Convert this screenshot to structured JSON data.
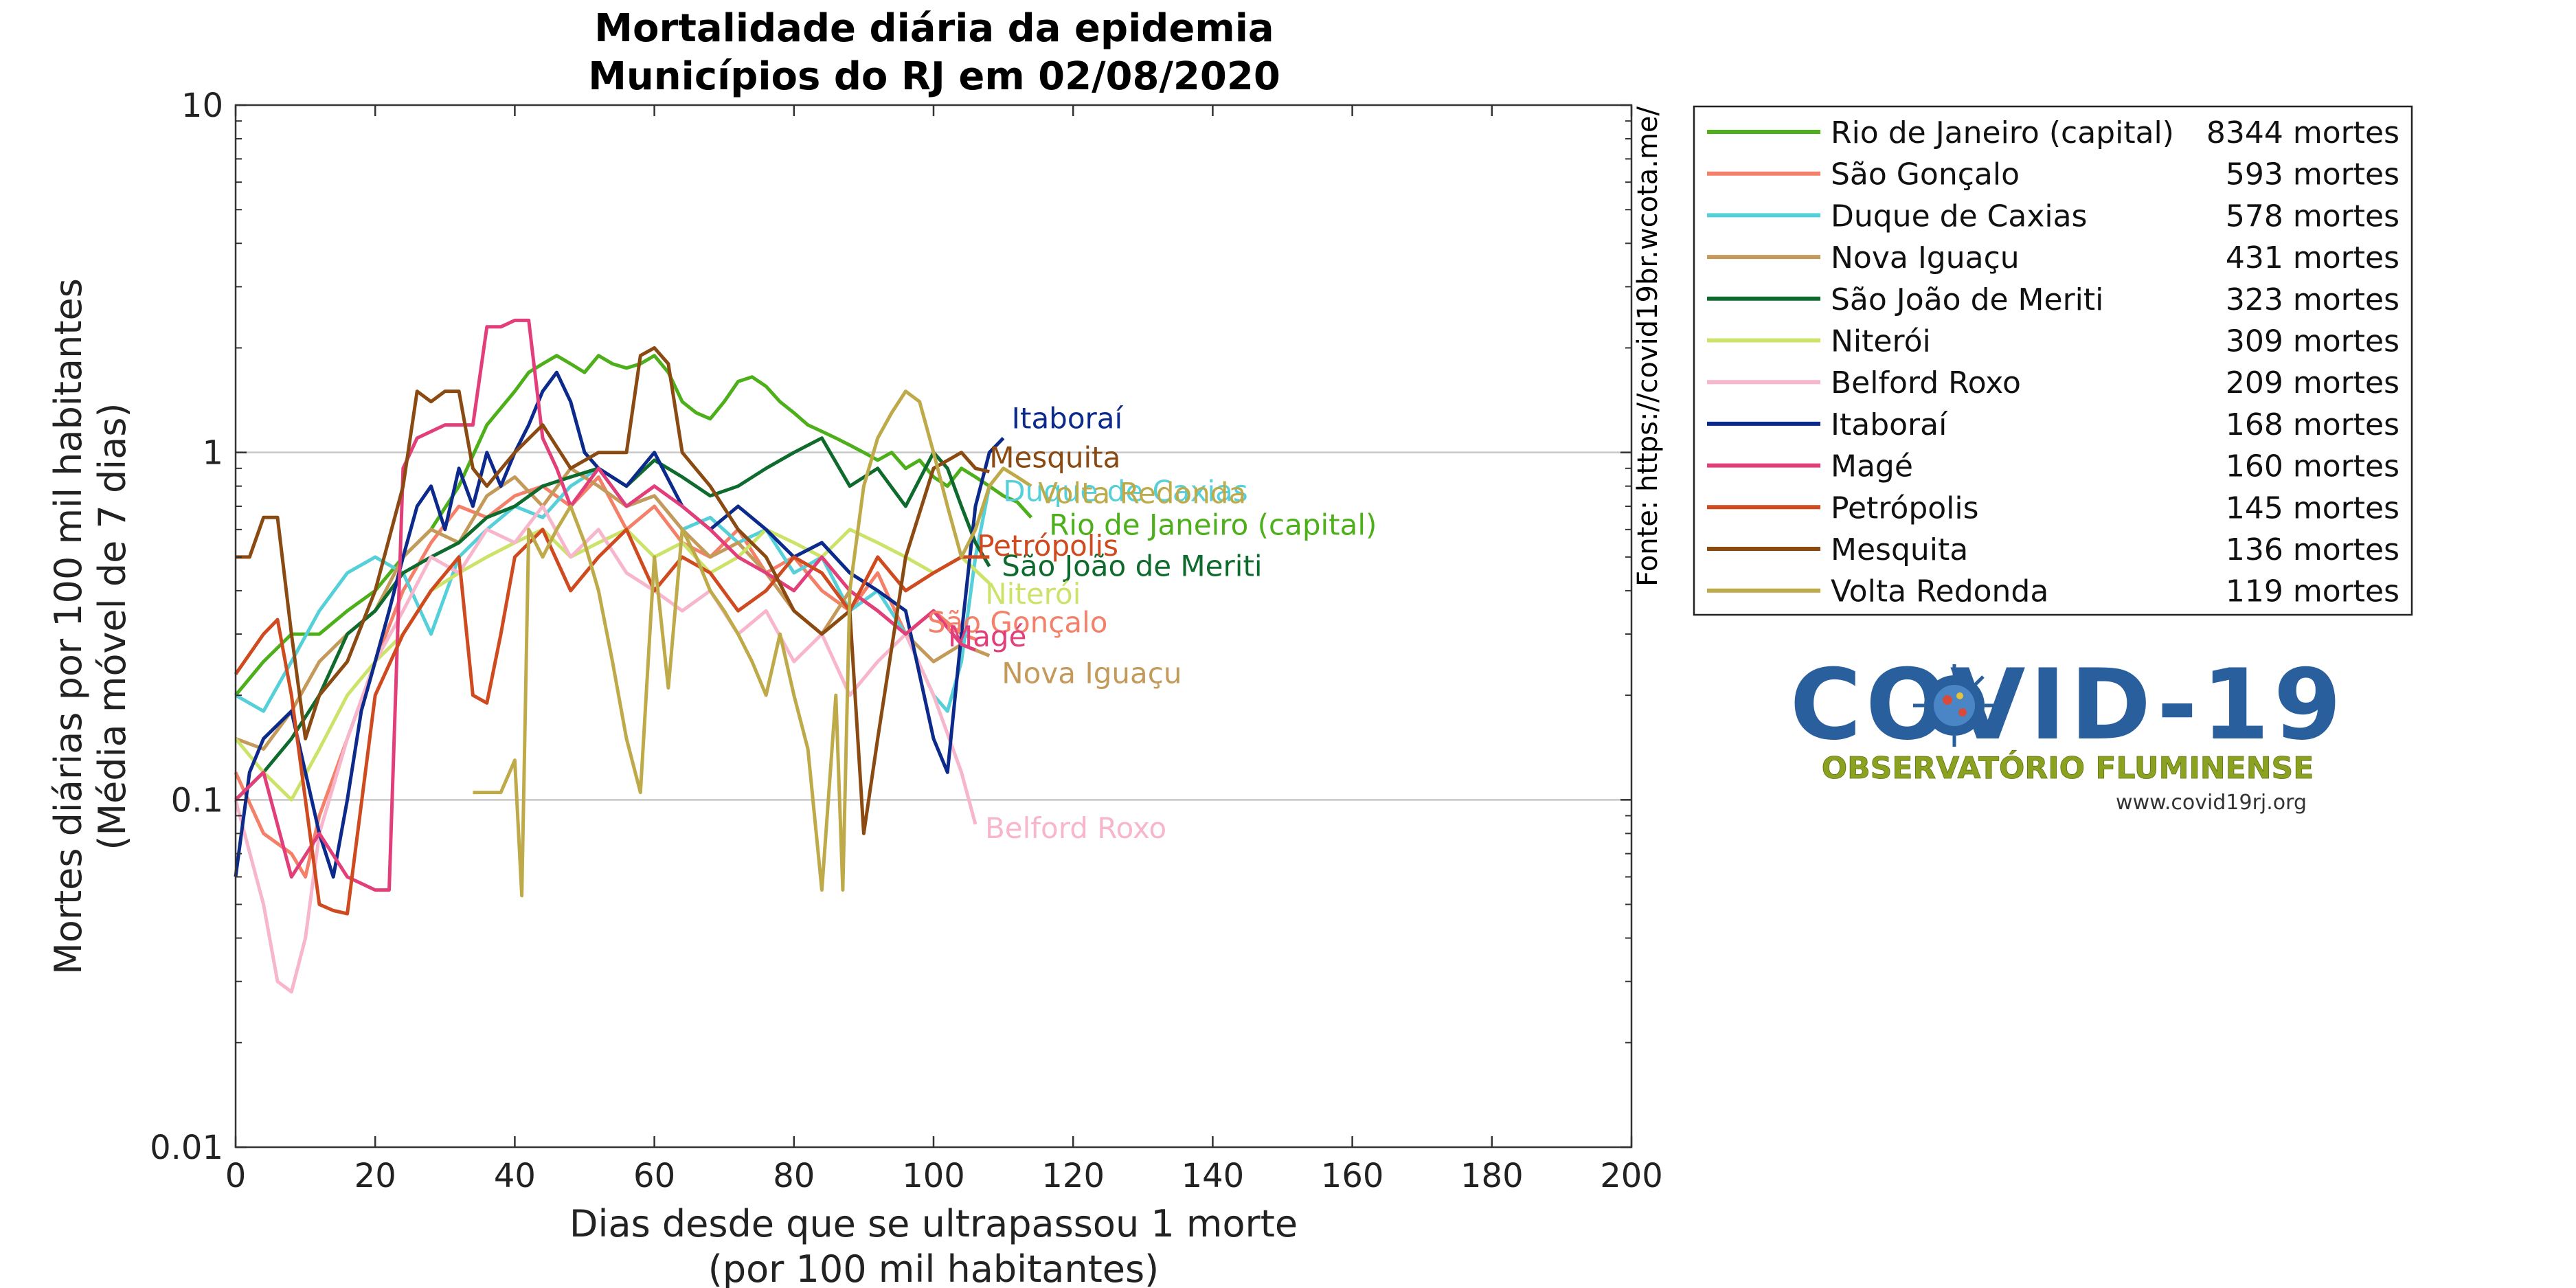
{
  "chart_data": {
    "type": "line",
    "title_line1": "Mortalidade diária da epidemia",
    "title_line2": "Municípios do RJ em 02/08/2020",
    "xlabel_line1": "Dias desde que se ultrapassou 1 morte",
    "xlabel_line2": "(por 100 mil habitantes)",
    "ylabel_line1": "Mortes diárias por 100 mil habitantes",
    "ylabel_line2": "(Média móvel de 7 dias)",
    "side_note": "Fonte: https://covid19br.wcota.me/",
    "xlim": [
      0,
      200
    ],
    "ylim": [
      0.01,
      10
    ],
    "yscale": "log",
    "grid": "horizontal at decades",
    "legend_placement": "outside right",
    "x_ticks": [
      "0",
      "20",
      "40",
      "60",
      "80",
      "100",
      "120",
      "140",
      "160",
      "180",
      "200"
    ],
    "y_ticks": [
      "0.01",
      "0.1",
      "1",
      "10"
    ],
    "series": [
      {
        "name": "Rio de Janeiro (capital)",
        "deaths": "8344 mortes",
        "color": "#4daf1a",
        "end_label": "Rio de Janeiro (capital)",
        "x": [
          0,
          4,
          8,
          12,
          16,
          20,
          24,
          28,
          32,
          36,
          40,
          42,
          44,
          46,
          48,
          50,
          52,
          54,
          56,
          58,
          60,
          62,
          64,
          66,
          68,
          70,
          72,
          74,
          76,
          78,
          80,
          82,
          84,
          86,
          88,
          90,
          92,
          94,
          96,
          98,
          100,
          102,
          104,
          106,
          108,
          110,
          112,
          114
        ],
        "y": [
          0.2,
          0.25,
          0.3,
          0.3,
          0.35,
          0.4,
          0.5,
          0.6,
          0.8,
          1.2,
          1.5,
          1.7,
          1.8,
          1.9,
          1.8,
          1.7,
          1.9,
          1.8,
          1.75,
          1.8,
          1.9,
          1.7,
          1.4,
          1.3,
          1.25,
          1.4,
          1.6,
          1.65,
          1.55,
          1.4,
          1.3,
          1.2,
          1.15,
          1.1,
          1.05,
          1.0,
          0.95,
          1.0,
          0.9,
          0.95,
          0.85,
          0.8,
          0.9,
          0.85,
          0.8,
          0.75,
          0.72,
          0.65
        ]
      },
      {
        "name": "São Gonçalo",
        "deaths": "593 mortes",
        "color": "#f4806a",
        "end_label": "São Gonçalo",
        "x": [
          0,
          4,
          8,
          10,
          12,
          16,
          20,
          24,
          28,
          32,
          36,
          40,
          44,
          48,
          52,
          56,
          60,
          64,
          68,
          72,
          76,
          80,
          84,
          88,
          92,
          96,
          100,
          104,
          106
        ],
        "y": [
          0.12,
          0.08,
          0.07,
          0.06,
          0.09,
          0.15,
          0.25,
          0.4,
          0.55,
          0.7,
          0.65,
          0.75,
          0.8,
          0.7,
          0.85,
          0.6,
          0.7,
          0.55,
          0.5,
          0.6,
          0.45,
          0.5,
          0.4,
          0.35,
          0.45,
          0.3,
          0.35,
          0.3,
          0.29
        ]
      },
      {
        "name": "Duque de Caxias",
        "deaths": "578 mortes",
        "color": "#56d0d8",
        "end_label": "Duque de Caxias",
        "x": [
          0,
          4,
          8,
          12,
          16,
          20,
          24,
          28,
          32,
          36,
          40,
          44,
          48,
          52,
          56,
          60,
          64,
          68,
          72,
          76,
          80,
          84,
          88,
          92,
          96,
          100,
          102,
          104,
          106,
          108
        ],
        "y": [
          0.2,
          0.18,
          0.25,
          0.35,
          0.45,
          0.5,
          0.45,
          0.3,
          0.5,
          0.6,
          0.7,
          0.65,
          0.8,
          0.9,
          0.7,
          0.75,
          0.6,
          0.65,
          0.55,
          0.6,
          0.45,
          0.5,
          0.35,
          0.4,
          0.3,
          0.2,
          0.18,
          0.25,
          0.5,
          0.8
        ]
      },
      {
        "name": "Nova Iguaçu",
        "deaths": "431 mortes",
        "color": "#c49a5b",
        "end_label": "Nova Iguaçu",
        "x": [
          0,
          4,
          8,
          12,
          16,
          20,
          24,
          28,
          32,
          36,
          40,
          44,
          48,
          52,
          56,
          60,
          64,
          68,
          72,
          76,
          80,
          84,
          88,
          92,
          96,
          100,
          104,
          108
        ],
        "y": [
          0.15,
          0.14,
          0.18,
          0.25,
          0.3,
          0.35,
          0.5,
          0.6,
          0.55,
          0.75,
          0.85,
          0.7,
          0.9,
          0.8,
          0.7,
          0.75,
          0.6,
          0.5,
          0.55,
          0.45,
          0.35,
          0.3,
          0.4,
          0.35,
          0.3,
          0.25,
          0.28,
          0.26
        ]
      },
      {
        "name": "São João de Meriti",
        "deaths": "323 mortes",
        "color": "#0f6b2d",
        "end_label": "São João de Meriti",
        "x": [
          0,
          4,
          8,
          12,
          16,
          20,
          24,
          28,
          32,
          36,
          40,
          44,
          48,
          52,
          56,
          60,
          64,
          68,
          72,
          76,
          80,
          84,
          88,
          92,
          96,
          100,
          102,
          104,
          106,
          108
        ],
        "y": [
          0.1,
          0.12,
          0.15,
          0.2,
          0.3,
          0.35,
          0.45,
          0.5,
          0.55,
          0.65,
          0.7,
          0.8,
          0.85,
          0.9,
          0.8,
          0.95,
          0.85,
          0.75,
          0.8,
          0.9,
          1.0,
          1.1,
          0.8,
          0.9,
          0.7,
          1.0,
          0.9,
          0.7,
          0.55,
          0.47
        ]
      },
      {
        "name": "Niterói",
        "deaths": "309 mortes",
        "color": "#cce36a",
        "end_label": "Niterói",
        "x": [
          0,
          4,
          8,
          12,
          16,
          20,
          24,
          28,
          32,
          36,
          40,
          44,
          48,
          52,
          56,
          60,
          64,
          68,
          72,
          76,
          80,
          84,
          88,
          92,
          96,
          100,
          104,
          108
        ],
        "y": [
          0.15,
          0.12,
          0.1,
          0.14,
          0.2,
          0.25,
          0.3,
          0.4,
          0.45,
          0.5,
          0.55,
          0.6,
          0.5,
          0.55,
          0.6,
          0.5,
          0.55,
          0.45,
          0.5,
          0.6,
          0.55,
          0.5,
          0.6,
          0.55,
          0.5,
          0.45,
          0.5,
          0.42
        ]
      },
      {
        "name": "Belford Roxo",
        "deaths": "209 mortes",
        "color": "#f7b6cc",
        "end_label": "Belford Roxo",
        "x": [
          0,
          4,
          6,
          8,
          10,
          12,
          16,
          20,
          24,
          28,
          32,
          36,
          40,
          44,
          48,
          52,
          56,
          60,
          64,
          68,
          72,
          76,
          80,
          84,
          88,
          92,
          96,
          100,
          104,
          106
        ],
        "y": [
          0.1,
          0.05,
          0.03,
          0.028,
          0.04,
          0.08,
          0.15,
          0.25,
          0.35,
          0.5,
          0.45,
          0.6,
          0.55,
          0.7,
          0.5,
          0.6,
          0.45,
          0.4,
          0.35,
          0.4,
          0.3,
          0.35,
          0.25,
          0.3,
          0.2,
          0.25,
          0.3,
          0.2,
          0.12,
          0.085
        ]
      },
      {
        "name": "Itaboraí",
        "deaths": "168 mortes",
        "color": "#0b2a8c",
        "end_label": "Itaboraí",
        "x": [
          0,
          2,
          4,
          8,
          12,
          14,
          16,
          18,
          20,
          22,
          24,
          26,
          28,
          30,
          32,
          34,
          36,
          38,
          40,
          42,
          44,
          46,
          48,
          50,
          52,
          56,
          60,
          64,
          68,
          72,
          76,
          80,
          84,
          88,
          92,
          96,
          100,
          102,
          104,
          106,
          108,
          110
        ],
        "y": [
          0.06,
          0.12,
          0.15,
          0.18,
          0.08,
          0.06,
          0.1,
          0.18,
          0.25,
          0.35,
          0.5,
          0.7,
          0.8,
          0.6,
          0.9,
          0.7,
          1.0,
          0.8,
          1.0,
          1.2,
          1.5,
          1.7,
          1.4,
          1.0,
          0.9,
          0.8,
          1.0,
          0.7,
          0.6,
          0.7,
          0.6,
          0.5,
          0.55,
          0.45,
          0.4,
          0.35,
          0.15,
          0.12,
          0.3,
          0.7,
          1.0,
          1.1
        ]
      },
      {
        "name": "Magé",
        "deaths": "160 mortes",
        "color": "#e23f7a",
        "end_label": "Magé",
        "x": [
          0,
          4,
          8,
          12,
          16,
          20,
          22,
          24,
          26,
          30,
          34,
          36,
          38,
          40,
          42,
          44,
          46,
          48,
          52,
          56,
          60,
          64,
          68,
          72,
          76,
          80,
          84,
          88,
          92,
          96,
          100,
          104,
          106
        ],
        "y": [
          0.1,
          0.12,
          0.06,
          0.08,
          0.06,
          0.055,
          0.055,
          0.9,
          1.1,
          1.2,
          1.2,
          2.3,
          2.3,
          2.4,
          2.4,
          1.1,
          0.9,
          0.7,
          0.9,
          0.7,
          0.8,
          0.7,
          0.6,
          0.5,
          0.45,
          0.4,
          0.5,
          0.4,
          0.35,
          0.3,
          0.35,
          0.28,
          0.27
        ]
      },
      {
        "name": "Petrópolis",
        "deaths": "145 mortes",
        "color": "#cf4a1f",
        "end_label": "Petrópolis",
        "x": [
          0,
          4,
          6,
          8,
          10,
          12,
          14,
          16,
          20,
          24,
          28,
          32,
          34,
          36,
          38,
          40,
          44,
          48,
          52,
          56,
          60,
          64,
          68,
          72,
          76,
          80,
          84,
          88,
          92,
          96,
          100,
          104,
          108
        ],
        "y": [
          0.23,
          0.3,
          0.33,
          0.2,
          0.1,
          0.05,
          0.048,
          0.047,
          0.2,
          0.3,
          0.4,
          0.5,
          0.2,
          0.19,
          0.3,
          0.5,
          0.6,
          0.4,
          0.5,
          0.6,
          0.4,
          0.5,
          0.45,
          0.35,
          0.4,
          0.5,
          0.45,
          0.35,
          0.5,
          0.4,
          0.45,
          0.5,
          0.5
        ]
      },
      {
        "name": "Mesquita",
        "deaths": "136 mortes",
        "color": "#8a4a12",
        "end_label": "Mesquita",
        "x": [
          0,
          2,
          4,
          6,
          8,
          10,
          12,
          16,
          20,
          24,
          26,
          28,
          30,
          32,
          34,
          36,
          40,
          44,
          48,
          52,
          56,
          58,
          60,
          62,
          64,
          68,
          72,
          76,
          80,
          84,
          88,
          90,
          92,
          96,
          100,
          104,
          106,
          108
        ],
        "y": [
          0.5,
          0.5,
          0.65,
          0.65,
          0.3,
          0.15,
          0.2,
          0.25,
          0.4,
          0.8,
          1.5,
          1.4,
          1.5,
          1.5,
          0.9,
          0.8,
          1.0,
          1.2,
          0.9,
          1.0,
          1.0,
          1.9,
          2.0,
          1.8,
          1.0,
          0.8,
          0.6,
          0.5,
          0.35,
          0.3,
          0.35,
          0.08,
          0.15,
          0.5,
          0.9,
          1.0,
          0.9,
          0.88
        ]
      },
      {
        "name": "Volta Redonda",
        "deaths": "119 mortes",
        "color": "#bfaa4a",
        "end_label": "Volta Redonda",
        "x": [
          34,
          36,
          38,
          40,
          41,
          42,
          44,
          46,
          48,
          50,
          52,
          54,
          56,
          58,
          60,
          62,
          64,
          66,
          68,
          70,
          72,
          74,
          76,
          78,
          80,
          82,
          84,
          86,
          87,
          88,
          90,
          92,
          94,
          96,
          98,
          100,
          102,
          104,
          106,
          108,
          110,
          112,
          114
        ],
        "y": [
          0.105,
          0.105,
          0.105,
          0.13,
          0.053,
          0.6,
          0.5,
          0.6,
          0.7,
          0.55,
          0.4,
          0.25,
          0.15,
          0.105,
          0.5,
          0.21,
          0.6,
          0.5,
          0.4,
          0.35,
          0.3,
          0.25,
          0.2,
          0.3,
          0.2,
          0.14,
          0.055,
          0.2,
          0.055,
          0.4,
          0.8,
          1.1,
          1.3,
          1.5,
          1.4,
          1.0,
          0.7,
          0.5,
          0.6,
          0.8,
          0.9,
          0.85,
          0.8
        ]
      }
    ],
    "end_labels_order": [
      "Itaboraí",
      "Mesquita",
      "Duque de Caxias",
      "Volta Redonda",
      "Rio de Janeiro (capital)",
      "Petrópolis",
      "São João de Meriti",
      "Niterói",
      "São Gonçalo",
      "Magé",
      "Nova Iguaçu",
      "Belford Roxo"
    ]
  },
  "logo": {
    "word": "COVID-19",
    "subtitle": "OBSERVATÓRIO FLUMINENSE",
    "url": "www.covid19rj.org",
    "word_color": "#2a5f9e",
    "subtitle_color": "#8aa21f"
  }
}
